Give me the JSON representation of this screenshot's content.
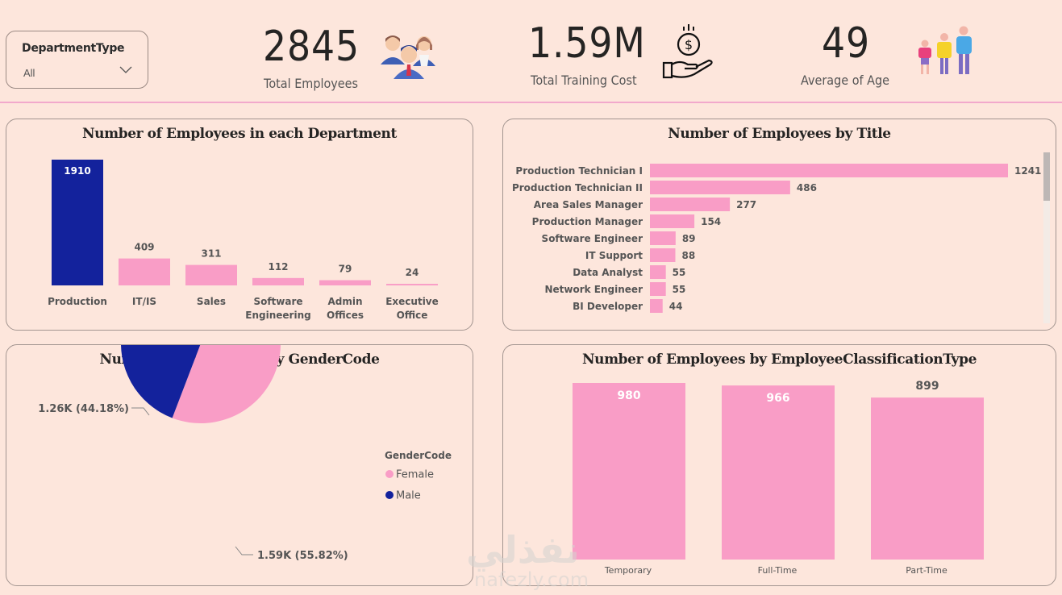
{
  "slicer": {
    "title": "DepartmentType",
    "value": "All"
  },
  "kpis": {
    "total_employees": {
      "value": "2845",
      "label": "Total Employees",
      "icon": "people-group-icon"
    },
    "training_cost": {
      "value": "1.59M",
      "label": "Total Training Cost",
      "icon": "money-hand-icon"
    },
    "average_age": {
      "value": "49",
      "label": "Average of Age",
      "icon": "family-icon"
    }
  },
  "colors": {
    "background": "#fde6dc",
    "pink": "#f99dc6",
    "navy": "#13229c",
    "accent_line": "#f2a9cc"
  },
  "watermark": {
    "arabic": "نفذلي",
    "latin": "nafezly.com"
  },
  "chart_data": [
    {
      "id": "dept",
      "type": "bar",
      "title": "Number of Employees in each Department",
      "categories": [
        "Production",
        "IT/IS",
        "Sales",
        "Software Engineering",
        "Admin Offices",
        "Executive Office"
      ],
      "category_lines": [
        [
          "Production"
        ],
        [
          "IT/IS"
        ],
        [
          "Sales"
        ],
        [
          "Software",
          "Engineering"
        ],
        [
          "Admin",
          "Offices"
        ],
        [
          "Executive",
          "Office"
        ]
      ],
      "values": [
        1910,
        409,
        311,
        112,
        79,
        24
      ],
      "highlight_index": 0,
      "xlabel": "",
      "ylabel": "",
      "ylim": [
        0,
        1910
      ],
      "grid": false
    },
    {
      "id": "title",
      "type": "bar",
      "orientation": "horizontal",
      "title": "Number of Employees by Title",
      "categories": [
        "Production Technician I",
        "Production Technician II",
        "Area Sales Manager",
        "Production Manager",
        "Software Engineer",
        "IT Support",
        "Data Analyst",
        "Network Engineer",
        "BI Developer"
      ],
      "values": [
        1241,
        486,
        277,
        154,
        89,
        88,
        55,
        55,
        44
      ],
      "xlim": [
        0,
        1241
      ],
      "grid": false
    },
    {
      "id": "gender",
      "type": "pie",
      "title": "Number of Employees by GenderCode",
      "legend_title": "GenderCode",
      "legend_position": "right",
      "slices": [
        {
          "name": "Female",
          "value": 1588,
          "percent": 55.82,
          "label": "1.59K (55.82%)"
        },
        {
          "name": "Male",
          "value": 1257,
          "percent": 44.18,
          "label": "1.26K (44.18%)"
        }
      ]
    },
    {
      "id": "classification",
      "type": "bar",
      "title": "Number of Employees by EmployeeClassificationType",
      "categories": [
        "Temporary",
        "Full-Time",
        "Part-Time"
      ],
      "values": [
        980,
        966,
        899
      ],
      "ylim": [
        0,
        980
      ],
      "grid": false
    }
  ]
}
